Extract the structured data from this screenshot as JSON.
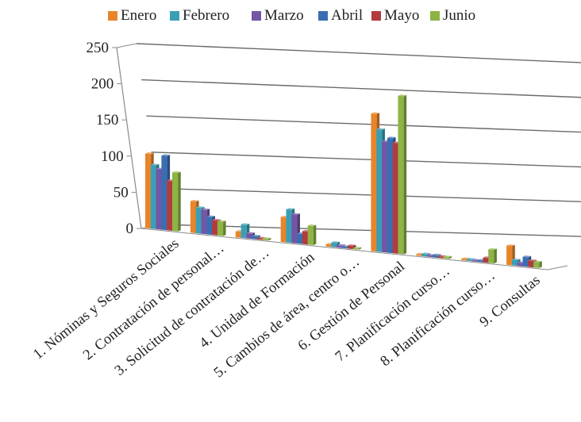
{
  "chart_data": {
    "type": "bar",
    "title": "",
    "xlabel": "",
    "ylabel": "",
    "ylim": [
      0,
      250
    ],
    "yticks": [
      0,
      50,
      100,
      150,
      200,
      250
    ],
    "grid": true,
    "legend_position": "top",
    "three_d": true,
    "categories": [
      "1. Nóminas y Seguros Sociales",
      "2. Contratación de personal…",
      "3. Solicitud de contratación de…",
      "4. Unidad de Formación",
      "5. Cambios de área, centro o…",
      "6. Gestión de Personal",
      "7. Planificación curso…",
      "8. Planificación curso…",
      "9. Consultas"
    ],
    "series": [
      {
        "name": "Enero",
        "color": "#E8852A",
        "values": [
          103,
          43,
          8,
          33,
          3,
          178,
          2,
          2,
          24
        ]
      },
      {
        "name": "Febrero",
        "color": "#3A9FB5",
        "values": [
          88,
          35,
          18,
          44,
          6,
          158,
          3,
          2,
          7
        ]
      },
      {
        "name": "Marzo",
        "color": "#7356A6",
        "values": [
          83,
          33,
          7,
          38,
          3,
          143,
          2,
          1,
          4
        ]
      },
      {
        "name": "Abril",
        "color": "#3A6EB2",
        "values": [
          102,
          24,
          4,
          13,
          2,
          148,
          3,
          2,
          12
        ]
      },
      {
        "name": "Mayo",
        "color": "#B23B3E",
        "values": [
          68,
          20,
          2,
          17,
          4,
          142,
          2,
          6,
          8
        ]
      },
      {
        "name": "Junio",
        "color": "#8DB444",
        "values": [
          80,
          19,
          2,
          25,
          1,
          203,
          2,
          17,
          7
        ]
      }
    ]
  }
}
